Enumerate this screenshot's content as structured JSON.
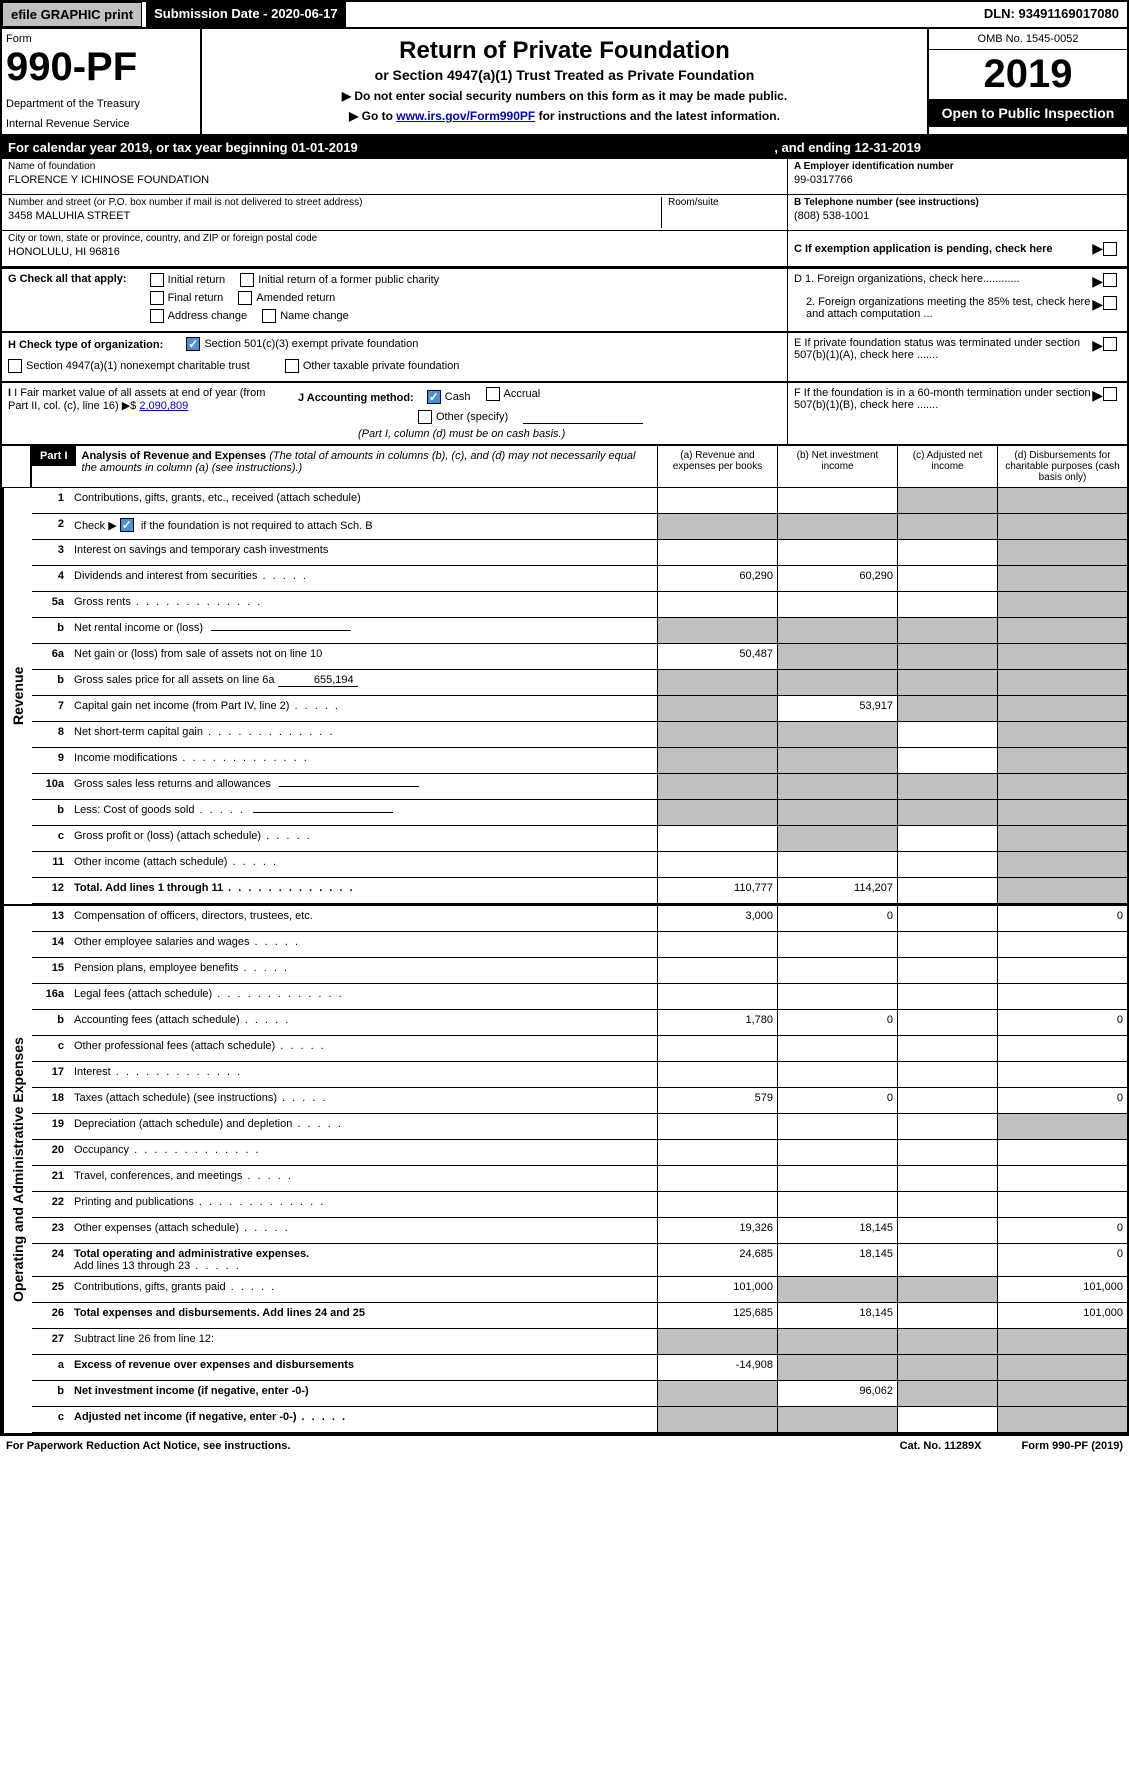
{
  "topBar": {
    "efile": "efile GRAPHIC print",
    "submissionDate": "Submission Date - 2020-06-17",
    "dln": "DLN: 93491169017080"
  },
  "header": {
    "formLabel": "Form",
    "formNumber": "990-PF",
    "dept": "Department of the Treasury",
    "irs": "Internal Revenue Service",
    "mainTitle": "Return of Private Foundation",
    "subtitle": "or Section 4947(a)(1) Trust Treated as Private Foundation",
    "instr1": "▶ Do not enter social security numbers on this form as it may be made public.",
    "instr2": "▶ Go to ",
    "instrLink": "www.irs.gov/Form990PF",
    "instr3": " for instructions and the latest information.",
    "omb": "OMB No. 1545-0052",
    "year": "2019",
    "openPublic": "Open to Public Inspection"
  },
  "calYear": {
    "text1": "For calendar year 2019, or tax year beginning 01-01-2019",
    "text2": ", and ending 12-31-2019"
  },
  "info": {
    "nameLabel": "Name of foundation",
    "name": "FLORENCE Y ICHINOSE FOUNDATION",
    "addrLabel": "Number and street (or P.O. box number if mail is not delivered to street address)",
    "addr": "3458 MALUHIA STREET",
    "roomLabel": "Room/suite",
    "cityLabel": "City or town, state or province, country, and ZIP or foreign postal code",
    "city": "HONOLULU, HI  96816",
    "einLabel": "A Employer identification number",
    "ein": "99-0317766",
    "phoneLabel": "B Telephone number (see instructions)",
    "phone": "(808) 538-1001",
    "pendingLabel": "C If exemption application is pending, check here"
  },
  "sectionG": {
    "label": "G Check all that apply:",
    "opts": [
      "Initial return",
      "Initial return of a former public charity",
      "Final return",
      "Amended return",
      "Address change",
      "Name change"
    ]
  },
  "sectionD": {
    "d1": "D 1. Foreign organizations, check here............",
    "d2": "2. Foreign organizations meeting the 85% test, check here and attach computation ...",
    "e": "E  If private foundation status was terminated under section 507(b)(1)(A), check here .......",
    "f": "F  If the foundation is in a 60-month termination under section 507(b)(1)(B), check here ......."
  },
  "sectionH": {
    "label": "H Check type of organization:",
    "opt1": "Section 501(c)(3) exempt private foundation",
    "opt2": "Section 4947(a)(1) nonexempt charitable trust",
    "opt3": "Other taxable private foundation"
  },
  "sectionI": {
    "label": "I Fair market value of all assets at end of year (from Part II, col. (c), line 16) ▶$ ",
    "value": "2,090,809"
  },
  "sectionJ": {
    "label": "J Accounting method:",
    "cash": "Cash",
    "accrual": "Accrual",
    "other": "Other (specify)",
    "note": "(Part I, column (d) must be on cash basis.)"
  },
  "part1": {
    "partLabel": "Part I",
    "title": "Analysis of Revenue and Expenses",
    "titleNote": " (The total of amounts in columns (b), (c), and (d) may not necessarily equal the amounts in column (a) (see instructions).)",
    "colA": "(a)  Revenue and expenses per books",
    "colB": "(b)  Net investment income",
    "colC": "(c)  Adjusted net income",
    "colD": "(d)  Disbursements for charitable purposes (cash basis only)"
  },
  "sideLabels": {
    "revenue": "Revenue",
    "expenses": "Operating and Administrative Expenses"
  },
  "rows": [
    {
      "num": "1",
      "label": "Contributions, gifts, grants, etc., received (attach schedule)",
      "a": "",
      "b": "",
      "c": "s",
      "d": "s"
    },
    {
      "num": "2",
      "label": "Check ▶ ",
      "checkbox": true,
      "labelAfter": " if the foundation is not required to attach Sch. B",
      "dots": true,
      "a": "s",
      "b": "s",
      "c": "s",
      "d": "s"
    },
    {
      "num": "3",
      "label": "Interest on savings and temporary cash investments",
      "a": "",
      "b": "",
      "c": "",
      "d": "s"
    },
    {
      "num": "4",
      "label": "Dividends and interest from securities",
      "dots": "short",
      "a": "60,290",
      "b": "60,290",
      "c": "",
      "d": "s"
    },
    {
      "num": "5a",
      "label": "Gross rents",
      "dots": true,
      "a": "",
      "b": "",
      "c": "",
      "d": "s"
    },
    {
      "num": "b",
      "label": "Net rental income or (loss)",
      "underline": true,
      "a": "s",
      "b": "s",
      "c": "s",
      "d": "s"
    },
    {
      "num": "6a",
      "label": "Net gain or (loss) from sale of assets not on line 10",
      "a": "50,487",
      "b": "s",
      "c": "s",
      "d": "s"
    },
    {
      "num": "b",
      "label": "Gross sales price for all assets on line 6a",
      "inlineValue": "655,194",
      "a": "s",
      "b": "s",
      "c": "s",
      "d": "s"
    },
    {
      "num": "7",
      "label": "Capital gain net income (from Part IV, line 2)",
      "dots": "short",
      "a": "s",
      "b": "53,917",
      "c": "s",
      "d": "s"
    },
    {
      "num": "8",
      "label": "Net short-term capital gain",
      "dots": true,
      "a": "s",
      "b": "s",
      "c": "",
      "d": "s"
    },
    {
      "num": "9",
      "label": "Income modifications",
      "dots": true,
      "a": "s",
      "b": "s",
      "c": "",
      "d": "s"
    },
    {
      "num": "10a",
      "label": "Gross sales less returns and allowances",
      "underline": true,
      "a": "s",
      "b": "s",
      "c": "s",
      "d": "s"
    },
    {
      "num": "b",
      "label": "Less: Cost of goods sold",
      "dots": "short",
      "underline": true,
      "a": "s",
      "b": "s",
      "c": "s",
      "d": "s"
    },
    {
      "num": "c",
      "label": "Gross profit or (loss) (attach schedule)",
      "dots": "short",
      "a": "",
      "b": "s",
      "c": "",
      "d": "s"
    },
    {
      "num": "11",
      "label": "Other income (attach schedule)",
      "dots": "short",
      "a": "",
      "b": "",
      "c": "",
      "d": "s"
    },
    {
      "num": "12",
      "label": "Total. Add lines 1 through 11",
      "bold": true,
      "dots": true,
      "a": "110,777",
      "b": "114,207",
      "c": "",
      "d": "s"
    }
  ],
  "expRows": [
    {
      "num": "13",
      "label": "Compensation of officers, directors, trustees, etc.",
      "a": "3,000",
      "b": "0",
      "c": "",
      "d": "0"
    },
    {
      "num": "14",
      "label": "Other employee salaries and wages",
      "dots": "short",
      "a": "",
      "b": "",
      "c": "",
      "d": ""
    },
    {
      "num": "15",
      "label": "Pension plans, employee benefits",
      "dots": "short",
      "a": "",
      "b": "",
      "c": "",
      "d": ""
    },
    {
      "num": "16a",
      "label": "Legal fees (attach schedule)",
      "dots": true,
      "a": "",
      "b": "",
      "c": "",
      "d": ""
    },
    {
      "num": "b",
      "label": "Accounting fees (attach schedule)",
      "dots": "short",
      "a": "1,780",
      "b": "0",
      "c": "",
      "d": "0"
    },
    {
      "num": "c",
      "label": "Other professional fees (attach schedule)",
      "dots": "short",
      "a": "",
      "b": "",
      "c": "",
      "d": ""
    },
    {
      "num": "17",
      "label": "Interest",
      "dots": true,
      "a": "",
      "b": "",
      "c": "",
      "d": ""
    },
    {
      "num": "18",
      "label": "Taxes (attach schedule) (see instructions)",
      "dots": "short",
      "a": "579",
      "b": "0",
      "c": "",
      "d": "0"
    },
    {
      "num": "19",
      "label": "Depreciation (attach schedule) and depletion",
      "dots": "short",
      "a": "",
      "b": "",
      "c": "",
      "d": "s"
    },
    {
      "num": "20",
      "label": "Occupancy",
      "dots": true,
      "a": "",
      "b": "",
      "c": "",
      "d": ""
    },
    {
      "num": "21",
      "label": "Travel, conferences, and meetings",
      "dots": "short",
      "a": "",
      "b": "",
      "c": "",
      "d": ""
    },
    {
      "num": "22",
      "label": "Printing and publications",
      "dots": true,
      "a": "",
      "b": "",
      "c": "",
      "d": ""
    },
    {
      "num": "23",
      "label": "Other expenses (attach schedule)",
      "dots": "short",
      "a": "19,326",
      "b": "18,145",
      "c": "",
      "d": "0"
    },
    {
      "num": "24",
      "label": "Total operating and administrative expenses.",
      "bold": true,
      "label2": "Add lines 13 through 23",
      "dots": "short",
      "a": "24,685",
      "b": "18,145",
      "c": "",
      "d": "0"
    },
    {
      "num": "25",
      "label": "Contributions, gifts, grants paid",
      "dots": "short",
      "a": "101,000",
      "b": "s",
      "c": "s",
      "d": "101,000"
    },
    {
      "num": "26",
      "label": "Total expenses and disbursements. Add lines 24 and 25",
      "bold": true,
      "a": "125,685",
      "b": "18,145",
      "c": "",
      "d": "101,000"
    },
    {
      "num": "27",
      "label": "Subtract line 26 from line 12:",
      "a": "s",
      "b": "s",
      "c": "s",
      "d": "s"
    },
    {
      "num": "a",
      "label": "Excess of revenue over expenses and disbursements",
      "bold": true,
      "a": "-14,908",
      "b": "s",
      "c": "s",
      "d": "s"
    },
    {
      "num": "b",
      "label": "Net investment income (if negative, enter -0-)",
      "bold": true,
      "a": "s",
      "b": "96,062",
      "c": "s",
      "d": "s"
    },
    {
      "num": "c",
      "label": "Adjusted net income (if negative, enter -0-)",
      "bold": true,
      "dots": "short",
      "a": "s",
      "b": "s",
      "c": "",
      "d": "s"
    }
  ],
  "footer": {
    "left": "For Paperwork Reduction Act Notice, see instructions.",
    "center": "Cat. No. 11289X",
    "right": "Form 990-PF (2019)"
  }
}
